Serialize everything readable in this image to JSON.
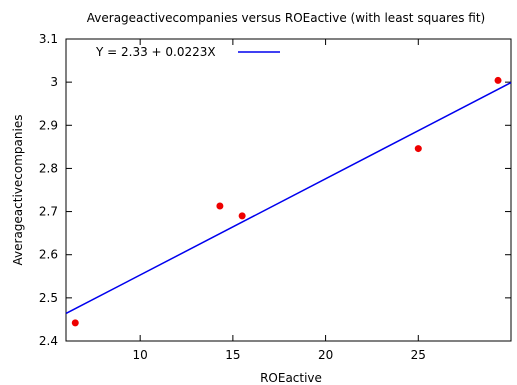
{
  "chart_data": {
    "type": "scatter",
    "title": "Averageactivecompanies versus ROEactive (with least squares fit)",
    "xlabel": "ROEactive",
    "ylabel": "Averageactivecompanies",
    "xlim": [
      6,
      30
    ],
    "ylim": [
      2.4,
      3.1
    ],
    "xticks": [
      10,
      15,
      20,
      25
    ],
    "yticks": [
      2.4,
      2.5,
      2.6,
      2.7,
      2.8,
      2.9,
      3,
      3.1
    ],
    "points": [
      {
        "x": 6.5,
        "y": 2.442
      },
      {
        "x": 14.3,
        "y": 2.713
      },
      {
        "x": 15.5,
        "y": 2.69
      },
      {
        "x": 25.0,
        "y": 2.846
      },
      {
        "x": 29.3,
        "y": 3.004
      }
    ],
    "fit": {
      "intercept": 2.33,
      "slope": 0.0223,
      "label": "Y = 2.33 + 0.0223X"
    },
    "point_color": "#ee0000",
    "line_color": "#0000ee",
    "legend_position": "top-left",
    "grid": false
  }
}
